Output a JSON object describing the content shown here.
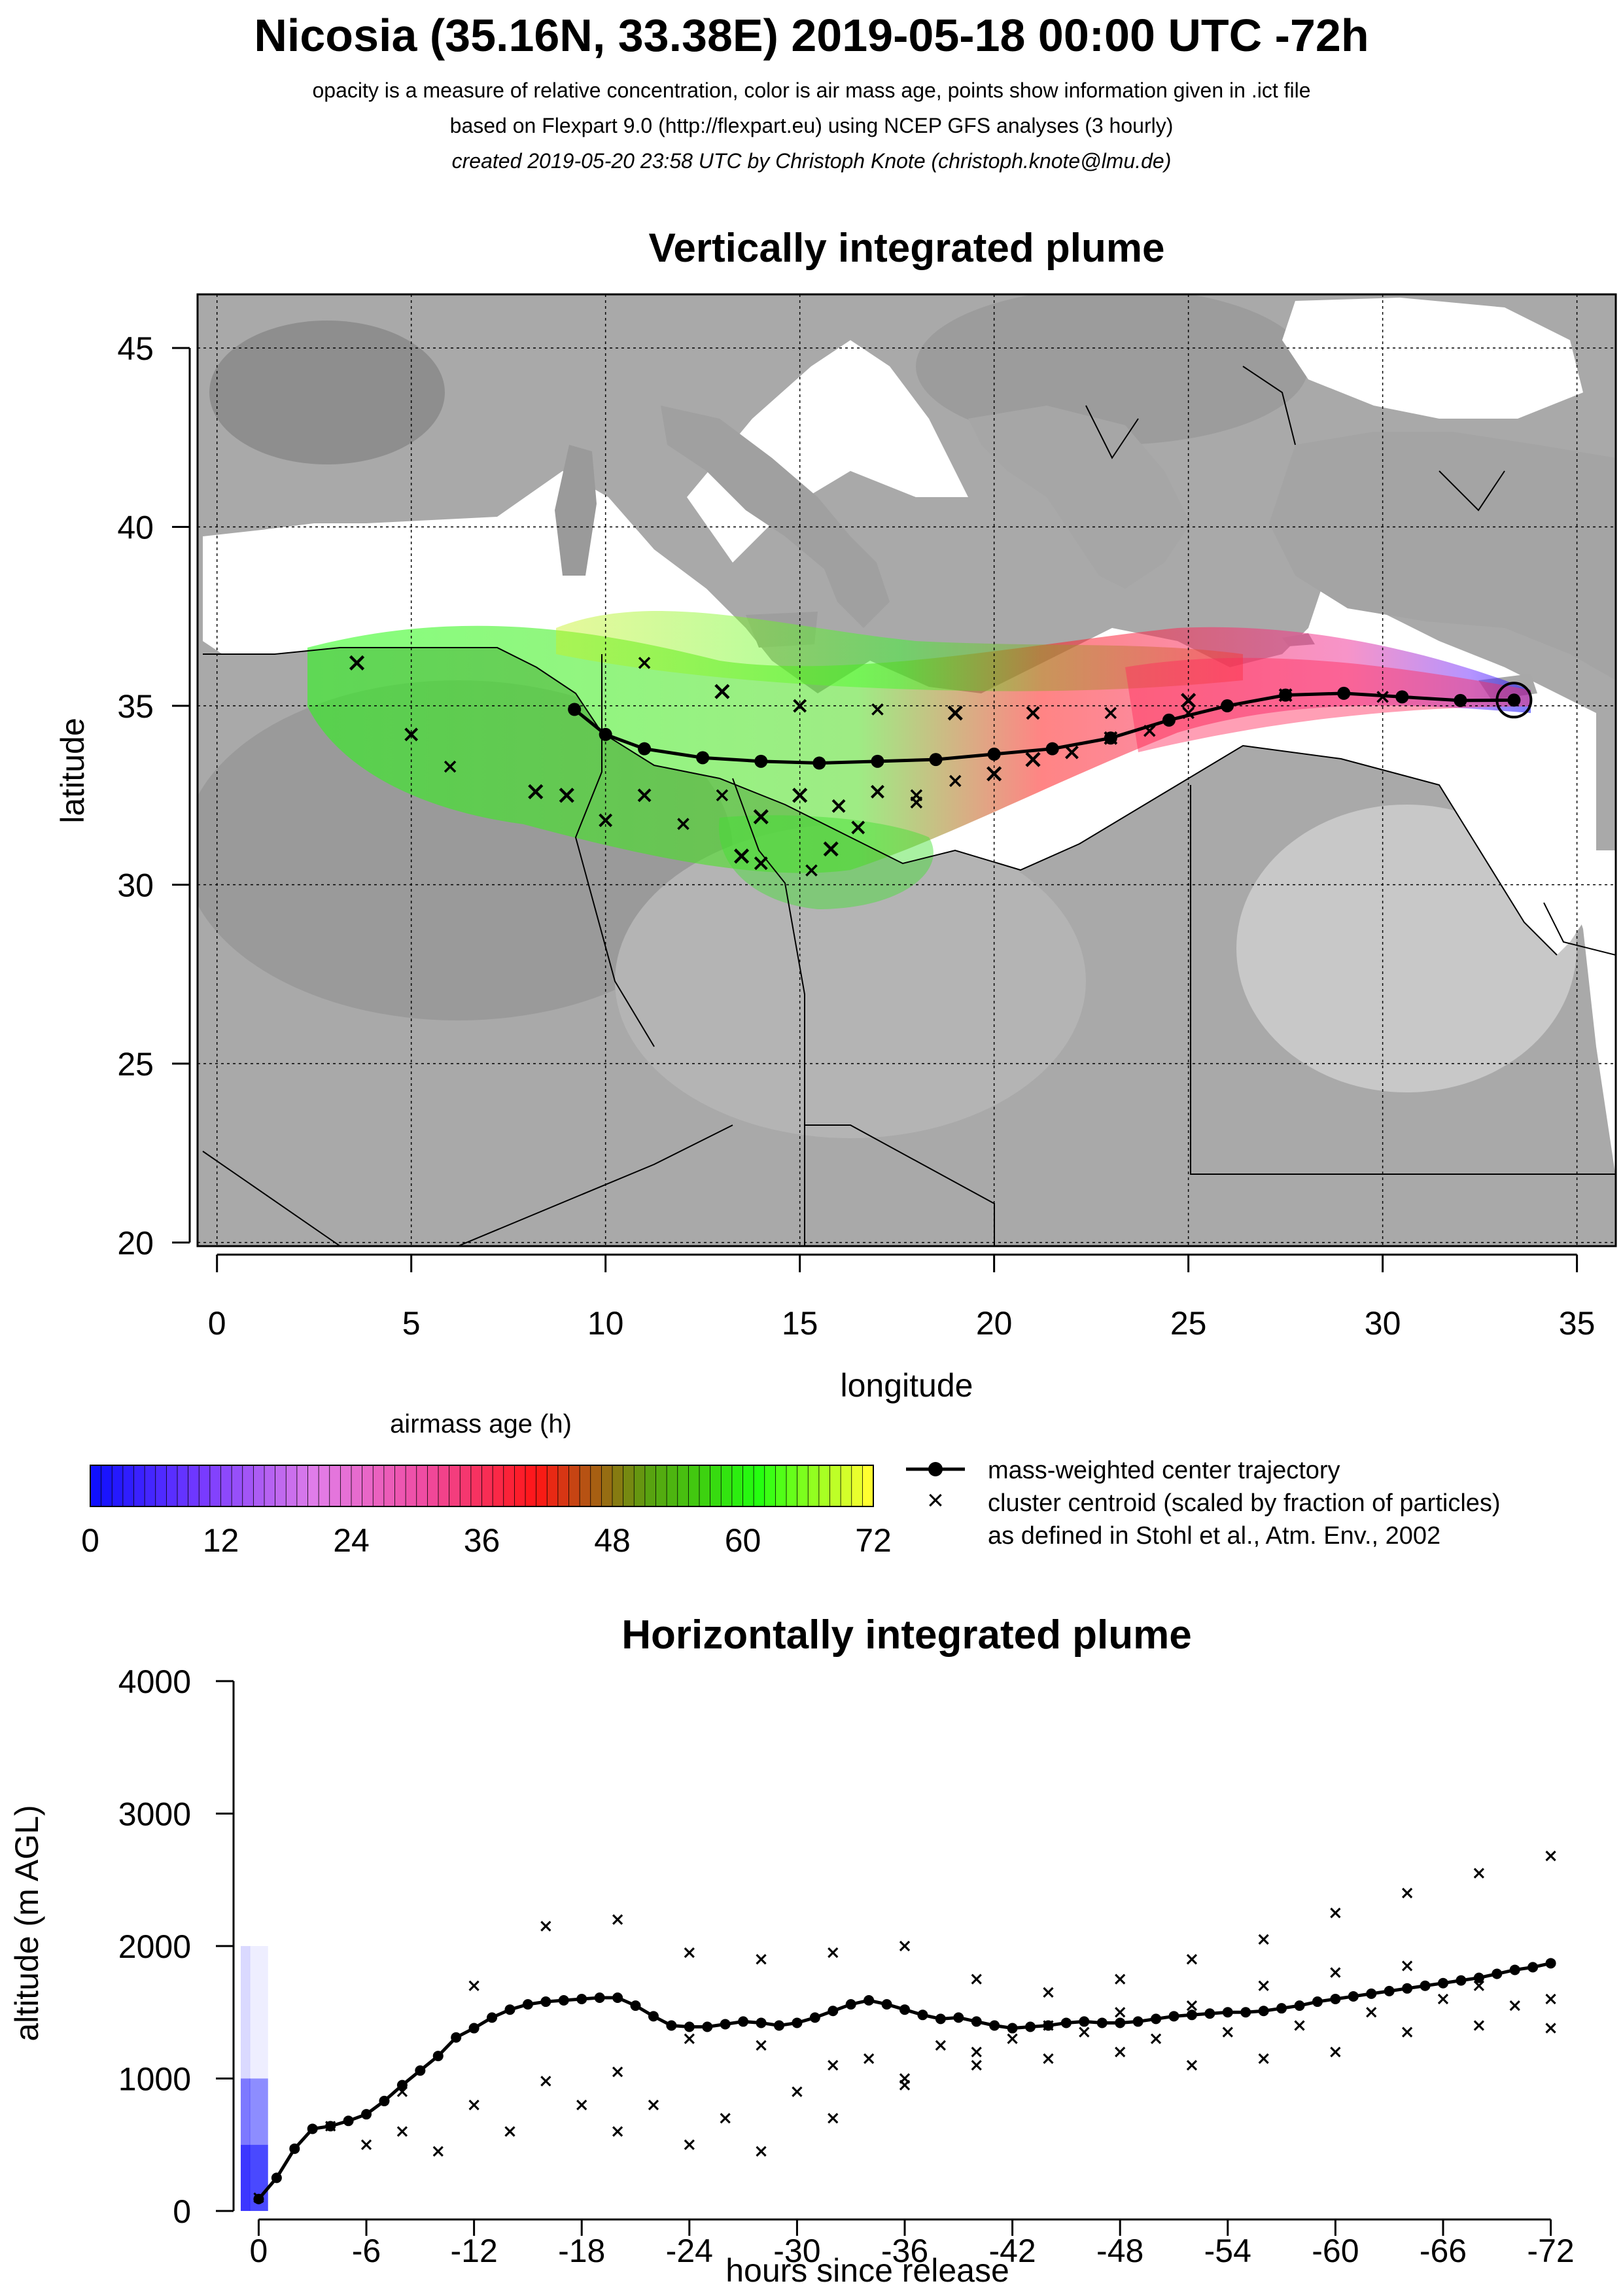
{
  "header": {
    "title": "Nicosia (35.16N, 33.38E) 2019-05-18 00:00 UTC -72h",
    "subtitle1": "opacity is a measure of relative concentration, color is air mass age, points show information given in .ict file",
    "subtitle2": "based on Flexpart 9.0 (http://flexpart.eu) using NCEP GFS analyses (3 hourly)",
    "subtitle3": "created 2019-05-20 23:58 UTC by Christoph Knote (christoph.knote@lmu.de)"
  },
  "colors": {
    "center": "#000000",
    "cluster": "#000000",
    "land": "#ffffff",
    "sea": "#bdbdbd"
  },
  "chart_data": [
    {
      "type": "scatter",
      "title": "Vertically integrated plume",
      "xlabel": "longitude",
      "ylabel": "latitude",
      "xlim": [
        -0.5,
        36
      ],
      "ylim": [
        19.9,
        46.5
      ],
      "xticks": [
        0,
        5,
        10,
        15,
        20,
        25,
        30,
        35
      ],
      "yticks": [
        20,
        25,
        30,
        35,
        40,
        45
      ],
      "grid": true,
      "release_point": {
        "lon": 33.38,
        "lat": 35.16
      },
      "colorbar": {
        "title": "airmass age (h)",
        "ticks": [
          0,
          12,
          24,
          36,
          48,
          60,
          72
        ],
        "stops": [
          "#1010ff",
          "#7a3cff",
          "#e27ee8",
          "#f04aa0",
          "#ff1515",
          "#5aa010",
          "#22ff10",
          "#ffff30"
        ]
      },
      "legend": {
        "items": [
          "mass-weighted center trajectory",
          "cluster centroid (scaled by fraction of particles)",
          "as defined in Stohl et al., Atm. Env., 2002"
        ]
      },
      "series": [
        {
          "name": "mass-weighted center trajectory",
          "points": [
            [
              33.38,
              35.16
            ],
            [
              32,
              35.15
            ],
            [
              30.5,
              35.25
            ],
            [
              29,
              35.35
            ],
            [
              27.5,
              35.3
            ],
            [
              26,
              35.0
            ],
            [
              24.5,
              34.6
            ],
            [
              23,
              34.1
            ],
            [
              21.5,
              33.8
            ],
            [
              20,
              33.65
            ],
            [
              18.5,
              33.5
            ],
            [
              17,
              33.45
            ],
            [
              15.5,
              33.4
            ],
            [
              14,
              33.45
            ],
            [
              12.5,
              33.55
            ],
            [
              11,
              33.8
            ],
            [
              10,
              34.2
            ],
            [
              9.2,
              34.9
            ]
          ]
        },
        {
          "name": "cluster centroid (scaled by fraction of particles)",
          "tracks": [
            [
              [
                30,
                35.25
              ],
              [
                27.5,
                35.3
              ],
              [
                25,
                35.15
              ],
              [
                23,
                34.8
              ],
              [
                21,
                34.8
              ],
              [
                19,
                34.8
              ],
              [
                17,
                34.9
              ],
              [
                15,
                35.0
              ],
              [
                13,
                35.4
              ],
              [
                11,
                36.2
              ]
            ],
            [
              [
                25,
                34.8
              ],
              [
                23,
                34.1
              ],
              [
                21,
                33.5
              ],
              [
                19,
                32.9
              ],
              [
                17,
                32.6
              ],
              [
                15,
                32.5
              ],
              [
                13,
                32.5
              ],
              [
                11,
                32.5
              ],
              [
                9,
                32.5
              ],
              [
                6,
                33.3
              ],
              [
                5,
                34.2
              ],
              [
                3.6,
                36.2
              ]
            ],
            [
              [
                24,
                34.3
              ],
              [
                22,
                33.7
              ],
              [
                20,
                33.1
              ],
              [
                18,
                32.5
              ],
              [
                16,
                32.2
              ],
              [
                14,
                31.9
              ],
              [
                12,
                31.7
              ],
              [
                10,
                31.8
              ],
              [
                8.2,
                32.6
              ]
            ],
            [
              [
                18,
                32.3
              ],
              [
                16.5,
                31.6
              ],
              [
                15.8,
                31.0
              ],
              [
                15.3,
                30.4
              ],
              [
                14,
                30.6
              ],
              [
                13.5,
                30.8
              ]
            ]
          ]
        }
      ]
    },
    {
      "type": "heatmap",
      "title": "Horizontally integrated plume",
      "xlabel": "hours since release",
      "ylabel": "altitude (m AGL)",
      "xlim": [
        1,
        -73
      ],
      "ylim": [
        0,
        4000
      ],
      "xticks": [
        0,
        -6,
        -12,
        -18,
        -24,
        -30,
        -36,
        -42,
        -48,
        -54,
        -60,
        -66,
        -72
      ],
      "yticks": [
        0,
        1000,
        2000,
        3000,
        4000
      ],
      "series": [
        {
          "name": "mass-weighted center trajectory",
          "x": [
            0,
            -1,
            -2,
            -3,
            -4,
            -5,
            -6,
            -7,
            -8,
            -9,
            -10,
            -11,
            -12,
            -13,
            -14,
            -15,
            -16,
            -17,
            -18,
            -19,
            -20,
            -21,
            -22,
            -23,
            -24,
            -25,
            -26,
            -27,
            -28,
            -29,
            -30,
            -31,
            -32,
            -33,
            -34,
            -35,
            -36,
            -37,
            -38,
            -39,
            -40,
            -41,
            -42,
            -43,
            -44,
            -45,
            -46,
            -47,
            -48,
            -49,
            -50,
            -51,
            -52,
            -53,
            -54,
            -55,
            -56,
            -57,
            -58,
            -59,
            -60,
            -61,
            -62,
            -63,
            -64,
            -65,
            -66,
            -67,
            -68,
            -69,
            -70,
            -71,
            -72
          ],
          "y": [
            90,
            250,
            470,
            620,
            640,
            680,
            730,
            830,
            950,
            1060,
            1170,
            1310,
            1380,
            1460,
            1520,
            1560,
            1580,
            1590,
            1600,
            1610,
            1610,
            1550,
            1470,
            1400,
            1390,
            1390,
            1410,
            1430,
            1420,
            1400,
            1420,
            1460,
            1510,
            1560,
            1590,
            1560,
            1520,
            1480,
            1450,
            1460,
            1430,
            1400,
            1380,
            1390,
            1400,
            1420,
            1430,
            1420,
            1420,
            1430,
            1450,
            1470,
            1480,
            1490,
            1500,
            1500,
            1510,
            1530,
            1550,
            1580,
            1600,
            1620,
            1640,
            1660,
            1680,
            1700,
            1720,
            1740,
            1760,
            1790,
            1820,
            1840,
            1870
          ]
        },
        {
          "name": "cluster centroid (scaled by fraction of particles)",
          "tracks": [
            {
              "x": [
                0,
                -4,
                -8,
                -12,
                -16,
                -20,
                -24,
                -28,
                -32,
                -36,
                -40,
                -44,
                -48,
                -52,
                -56,
                -60,
                -64,
                -68,
                -72
              ],
              "y": [
                100,
                640,
                900,
                1700,
                2150,
                2200,
                1950,
                1900,
                1950,
                2000,
                1750,
                1650,
                1750,
                1900,
                2050,
                2250,
                2400,
                2550,
                2680
              ]
            },
            {
              "x": [
                -8,
                -12,
                -16,
                -20,
                -24,
                -28,
                -32,
                -36,
                -40,
                -44,
                -48,
                -52,
                -56,
                -60,
                -64,
                -68,
                -72
              ],
              "y": [
                600,
                800,
                980,
                1050,
                1300,
                1250,
                1100,
                1000,
                1200,
                1400,
                1500,
                1550,
                1700,
                1800,
                1850,
                1700,
                1600
              ]
            },
            {
              "x": [
                -6,
                -10,
                -14,
                -18,
                -22,
                -26,
                -30,
                -34,
                -38,
                -42,
                -46,
                -50,
                -54,
                -58,
                -62,
                -66,
                -70
              ],
              "y": [
                500,
                450,
                600,
                800,
                800,
                700,
                900,
                1150,
                1250,
                1300,
                1350,
                1300,
                1350,
                1400,
                1500,
                1600,
                1550
              ]
            },
            {
              "x": [
                -20,
                -24,
                -28,
                -32,
                -36,
                -40,
                -44,
                -48,
                -52,
                -56,
                -60,
                -64,
                -68,
                -72
              ],
              "y": [
                600,
                500,
                450,
                700,
                950,
                1100,
                1150,
                1200,
                1100,
                1150,
                1200,
                1350,
                1400,
                1380
              ]
            }
          ]
        }
      ]
    }
  ]
}
